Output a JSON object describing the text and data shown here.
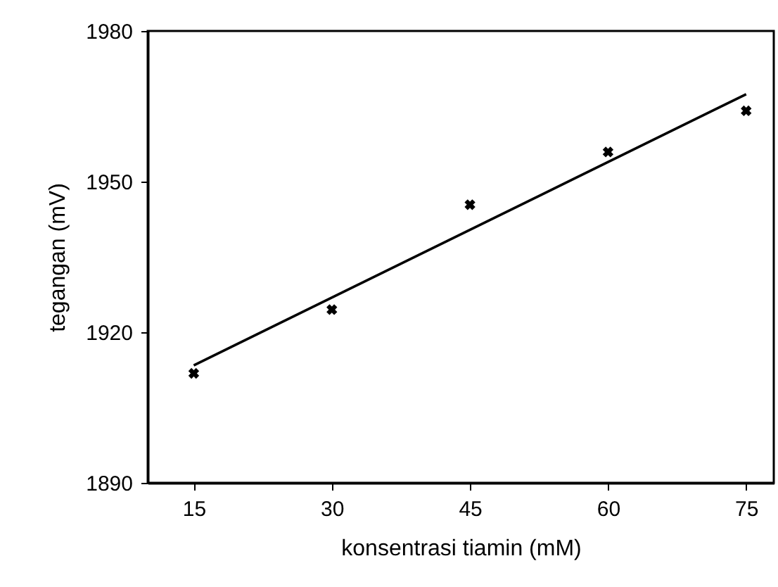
{
  "chart_data": {
    "type": "scatter",
    "xlabel": "konsentrasi tiamin (mM)",
    "ylabel": "tegangan (mV)",
    "x": [
      15,
      30,
      45,
      60,
      75
    ],
    "series": [
      {
        "color": "#000000",
        "marker": "cross",
        "values": [
          1911.8,
          1924.5,
          1945.4,
          1955.9,
          1964.1
        ]
      },
      {
        "type": "line",
        "color": "#000000",
        "marker": "none",
        "x": [
          15,
          75
        ],
        "values": [
          1913.4,
          1967.4
        ]
      }
    ],
    "xlim": [
      10,
      78
    ],
    "xticks": [
      15,
      30,
      45,
      60,
      75
    ],
    "ylim": [
      1890,
      1980
    ],
    "yticks": [
      1890,
      1920,
      1950,
      1980
    ],
    "grid": false
  }
}
